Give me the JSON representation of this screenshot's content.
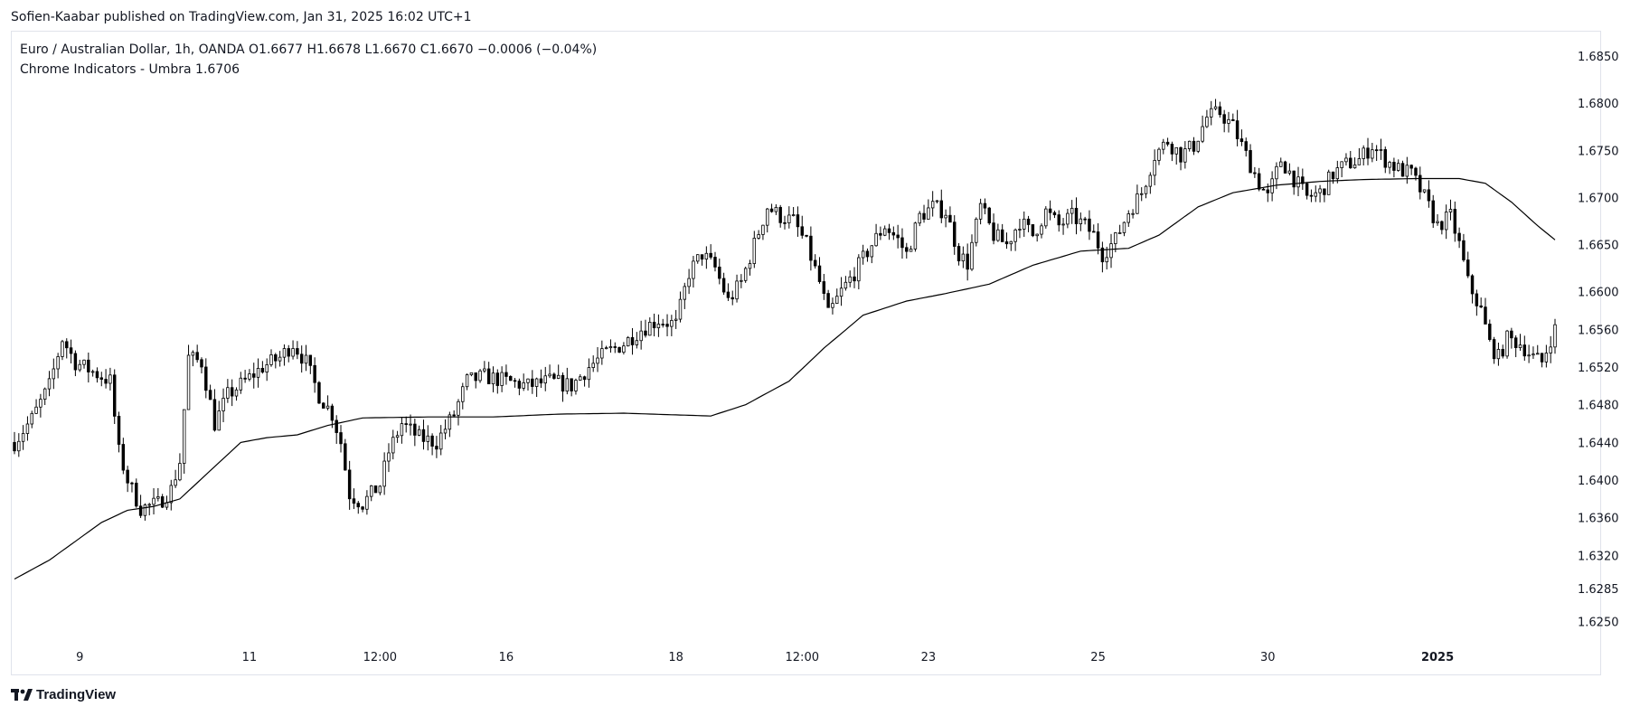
{
  "header": {
    "publisher_line": "Sofien-Kaabar published on TradingView.com, Jan 31, 2025 16:02 UTC+1"
  },
  "legend": {
    "symbol": "Euro / Australian Dollar, 1h, OANDA",
    "open": "O1.6677",
    "high": "H1.6678",
    "low": "L1.6670",
    "close": "C1.6670",
    "change": "−0.0006 (−0.04%)",
    "indicator_name": "Chrome Indicators - Umbra",
    "indicator_value": "1.6706"
  },
  "footer": {
    "brand": "TradingView",
    "logo_icon": "tradingview-logo-icon"
  },
  "colors": {
    "candle": "#000000",
    "ma_line": "#000000",
    "grid_border": "#e0e3eb",
    "text": "#131722"
  },
  "chart_data": {
    "type": "line",
    "title": "Euro / Australian Dollar, 1h, OANDA",
    "xlabel": "",
    "ylabel": "",
    "ylim": [
      1.6235,
      1.6875
    ],
    "y_ticks": [
      "1.6850",
      "1.6800",
      "1.6750",
      "1.6700",
      "1.6650",
      "1.6600",
      "1.6560",
      "1.6520",
      "1.6480",
      "1.6440",
      "1.6400",
      "1.6360",
      "1.6320",
      "1.6285",
      "1.6250"
    ],
    "x_ticks": [
      {
        "label": "9",
        "index": 15,
        "bold": false
      },
      {
        "label": "11",
        "index": 54,
        "bold": false
      },
      {
        "label": "12:00",
        "index": 84,
        "bold": false
      },
      {
        "label": "16",
        "index": 113,
        "bold": false
      },
      {
        "label": "18",
        "index": 152,
        "bold": false
      },
      {
        "label": "12:00",
        "index": 181,
        "bold": false
      },
      {
        "label": "23",
        "index": 210,
        "bold": false
      },
      {
        "label": "25",
        "index": 249,
        "bold": false
      },
      {
        "label": "30",
        "index": 288,
        "bold": false
      },
      {
        "label": "2025",
        "index": 327,
        "bold": true
      }
    ],
    "price_anchors": [
      [
        0,
        1.644
      ],
      [
        4,
        1.6465
      ],
      [
        8,
        1.65
      ],
      [
        11,
        1.655
      ],
      [
        14,
        1.6525
      ],
      [
        18,
        1.6515
      ],
      [
        22,
        1.6505
      ],
      [
        24,
        1.643
      ],
      [
        26,
        1.64
      ],
      [
        29,
        1.637
      ],
      [
        33,
        1.6375
      ],
      [
        36,
        1.639
      ],
      [
        38,
        1.642
      ],
      [
        40,
        1.653
      ],
      [
        43,
        1.6525
      ],
      [
        46,
        1.646
      ],
      [
        49,
        1.649
      ],
      [
        53,
        1.6505
      ],
      [
        57,
        1.652
      ],
      [
        61,
        1.653
      ],
      [
        64,
        1.6545
      ],
      [
        67,
        1.6525
      ],
      [
        70,
        1.649
      ],
      [
        73,
        1.647
      ],
      [
        75,
        1.644
      ],
      [
        77,
        1.6385
      ],
      [
        80,
        1.6375
      ],
      [
        84,
        1.6395
      ],
      [
        86,
        1.643
      ],
      [
        89,
        1.646
      ],
      [
        93,
        1.6445
      ],
      [
        97,
        1.644
      ],
      [
        101,
        1.647
      ],
      [
        104,
        1.6505
      ],
      [
        108,
        1.651
      ],
      [
        113,
        1.6505
      ],
      [
        118,
        1.65
      ],
      [
        123,
        1.6505
      ],
      [
        128,
        1.65
      ],
      [
        132,
        1.652
      ],
      [
        136,
        1.6535
      ],
      [
        140,
        1.6545
      ],
      [
        144,
        1.656
      ],
      [
        148,
        1.657
      ],
      [
        152,
        1.6565
      ],
      [
        155,
        1.662
      ],
      [
        158,
        1.664
      ],
      [
        161,
        1.6625
      ],
      [
        164,
        1.659
      ],
      [
        167,
        1.661
      ],
      [
        170,
        1.665
      ],
      [
        173,
        1.669
      ],
      [
        176,
        1.668
      ],
      [
        179,
        1.6675
      ],
      [
        182,
        1.665
      ],
      [
        185,
        1.661
      ],
      [
        187,
        1.6575
      ],
      [
        190,
        1.66
      ],
      [
        193,
        1.662
      ],
      [
        197,
        1.665
      ],
      [
        200,
        1.667
      ],
      [
        203,
        1.6655
      ],
      [
        205,
        1.664
      ],
      [
        208,
        1.668
      ],
      [
        211,
        1.669
      ],
      [
        214,
        1.6685
      ],
      [
        217,
        1.664
      ],
      [
        219,
        1.663
      ],
      [
        222,
        1.669
      ],
      [
        225,
        1.666
      ],
      [
        228,
        1.665
      ],
      [
        231,
        1.6675
      ],
      [
        234,
        1.666
      ],
      [
        237,
        1.6685
      ],
      [
        240,
        1.667
      ],
      [
        243,
        1.668
      ],
      [
        246,
        1.667
      ],
      [
        248,
        1.666
      ],
      [
        250,
        1.664
      ],
      [
        253,
        1.6655
      ],
      [
        256,
        1.6685
      ],
      [
        259,
        1.6705
      ],
      [
        262,
        1.6745
      ],
      [
        265,
        1.676
      ],
      [
        268,
        1.6745
      ],
      [
        271,
        1.6755
      ],
      [
        274,
        1.6785
      ],
      [
        277,
        1.679
      ],
      [
        280,
        1.6775
      ],
      [
        283,
        1.6745
      ],
      [
        286,
        1.6715
      ],
      [
        288,
        1.67
      ],
      [
        291,
        1.674
      ],
      [
        294,
        1.672
      ],
      [
        297,
        1.67
      ],
      [
        300,
        1.6705
      ],
      [
        303,
        1.6725
      ],
      [
        306,
        1.6735
      ],
      [
        309,
        1.674
      ],
      [
        312,
        1.6755
      ],
      [
        315,
        1.674
      ],
      [
        318,
        1.673
      ],
      [
        321,
        1.6725
      ],
      [
        324,
        1.67
      ],
      [
        327,
        1.667
      ],
      [
        330,
        1.668
      ],
      [
        332,
        1.665
      ],
      [
        334,
        1.661
      ],
      [
        337,
        1.658
      ],
      [
        339,
        1.6545
      ],
      [
        341,
        1.653
      ],
      [
        343,
        1.655
      ],
      [
        346,
        1.6545
      ],
      [
        349,
        1.653
      ],
      [
        351,
        1.6525
      ],
      [
        353,
        1.655
      ],
      [
        354,
        1.656
      ]
    ],
    "indicator_anchors": [
      [
        0,
        1.6295
      ],
      [
        8,
        1.6315
      ],
      [
        14,
        1.6335
      ],
      [
        20,
        1.6355
      ],
      [
        26,
        1.6368
      ],
      [
        32,
        1.6372
      ],
      [
        38,
        1.638
      ],
      [
        45,
        1.641
      ],
      [
        52,
        1.644
      ],
      [
        58,
        1.6445
      ],
      [
        65,
        1.6448
      ],
      [
        72,
        1.6458
      ],
      [
        80,
        1.6466
      ],
      [
        95,
        1.6467
      ],
      [
        110,
        1.6467
      ],
      [
        125,
        1.647
      ],
      [
        140,
        1.6471
      ],
      [
        160,
        1.6468
      ],
      [
        168,
        1.648
      ],
      [
        178,
        1.6505
      ],
      [
        186,
        1.654
      ],
      [
        195,
        1.6575
      ],
      [
        205,
        1.659
      ],
      [
        214,
        1.6598
      ],
      [
        224,
        1.6608
      ],
      [
        234,
        1.6628
      ],
      [
        245,
        1.6643
      ],
      [
        256,
        1.6646
      ],
      [
        263,
        1.666
      ],
      [
        272,
        1.669
      ],
      [
        280,
        1.6705
      ],
      [
        290,
        1.6713
      ],
      [
        300,
        1.6717
      ],
      [
        310,
        1.6719
      ],
      [
        322,
        1.672
      ],
      [
        332,
        1.672
      ],
      [
        338,
        1.6715
      ],
      [
        344,
        1.6695
      ],
      [
        350,
        1.667
      ],
      [
        354,
        1.6655
      ]
    ],
    "candle_count": 355
  }
}
